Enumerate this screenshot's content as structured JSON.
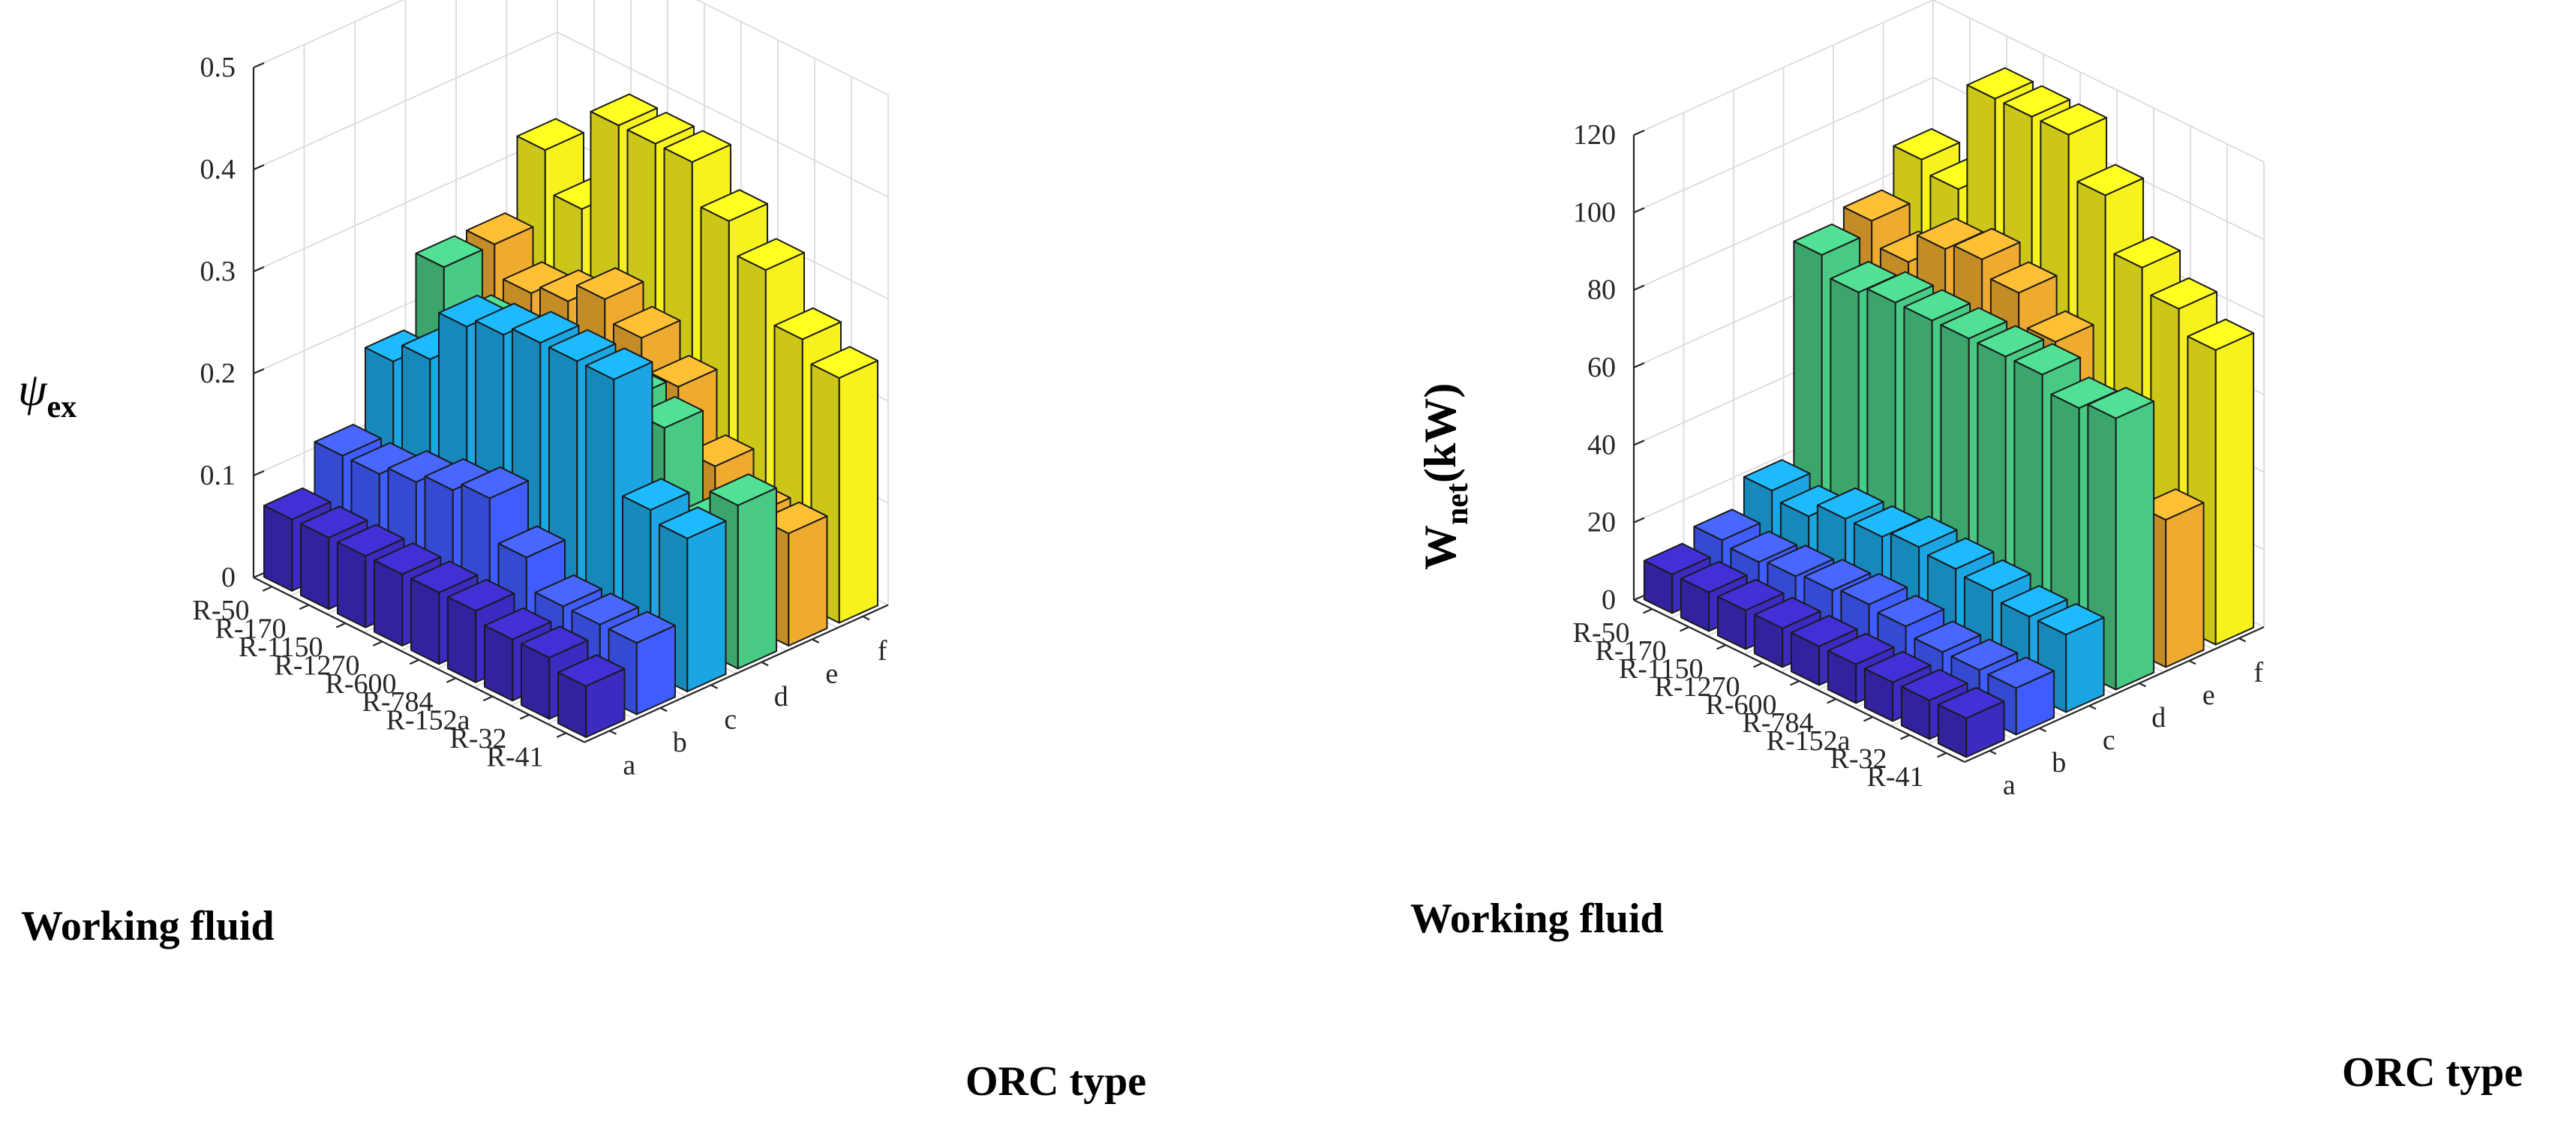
{
  "colors": {
    "a": "#3b2bc0",
    "b": "#3f5cff",
    "c": "#1ba6e3",
    "d": "#48c984",
    "e": "#efab2f",
    "f": "#f7f21d"
  },
  "chart_data": [
    {
      "type": "bar3d",
      "title": "",
      "xlabel": "Working fluid",
      "ylabel": "ORC type",
      "zlabel": "ψ_ex",
      "zlabel_parts": {
        "main": "ψ",
        "sub": "ex"
      },
      "zlim": [
        0,
        0.5
      ],
      "zticks": [
        0,
        0.1,
        0.2,
        0.3,
        0.4,
        0.5
      ],
      "zticklabels": [
        "0",
        "0.1",
        "0.2",
        "0.3",
        "0.4",
        "0.5"
      ],
      "categories": [
        "R-50",
        "R-170",
        "R-1150",
        "R-1270",
        "R-600",
        "R-784",
        "R-152a",
        "R-32",
        "R-41"
      ],
      "series": [
        {
          "name": "a",
          "values": [
            0.07,
            0.07,
            0.07,
            0.07,
            0.07,
            0.07,
            0.06,
            0.06,
            0.05
          ]
        },
        {
          "name": "b",
          "values": [
            0.11,
            0.11,
            0.12,
            0.13,
            0.14,
            0.1,
            0.07,
            0.07,
            0.07
          ]
        },
        {
          "name": "c",
          "values": [
            0.18,
            0.2,
            0.25,
            0.26,
            0.27,
            0.27,
            0.27,
            0.16,
            0.15
          ]
        },
        {
          "name": "d",
          "values": [
            0.25,
            0.21,
            0.21,
            0.21,
            0.21,
            0.21,
            0.2,
            0.12,
            0.16
          ]
        },
        {
          "name": "e",
          "values": [
            0.25,
            0.22,
            0.23,
            0.25,
            0.23,
            0.2,
            0.14,
            0.11,
            0.11
          ]
        },
        {
          "name": "f",
          "values": [
            0.32,
            0.28,
            0.38,
            0.38,
            0.38,
            0.34,
            0.31,
            0.26,
            0.24
          ]
        }
      ]
    },
    {
      "type": "bar3d",
      "title": "",
      "xlabel": "Working fluid",
      "ylabel": "ORC type",
      "zlabel": "W_net(kW)",
      "zlabel_parts": {
        "main": "W",
        "sub": "net",
        "tail": "(kW)"
      },
      "zlim": [
        0,
        120
      ],
      "zticks": [
        0,
        20,
        40,
        60,
        80,
        100,
        120
      ],
      "zticklabels": [
        "0",
        "20",
        "40",
        "60",
        "80",
        "100",
        "120"
      ],
      "categories": [
        "R-50",
        "R-170",
        "R-1150",
        "R-1270",
        "R-600",
        "R-784",
        "R-152a",
        "R-32",
        "R-41"
      ],
      "series": [
        {
          "name": "a",
          "values": [
            10,
            10,
            10,
            10,
            10,
            10,
            10,
            10,
            10
          ]
        },
        {
          "name": "b",
          "values": [
            13,
            12,
            13,
            14,
            15,
            14,
            12,
            12,
            12
          ]
        },
        {
          "name": "c",
          "values": [
            20,
            18,
            22,
            22,
            24,
            23,
            22,
            20,
            20
          ]
        },
        {
          "name": "d",
          "values": [
            75,
            70,
            72,
            72,
            72,
            72,
            72,
            68,
            70
          ]
        },
        {
          "name": "e",
          "values": [
            78,
            72,
            80,
            82,
            78,
            70,
            55,
            33,
            38
          ]
        },
        {
          "name": "f",
          "values": [
            88,
            85,
            113,
            113,
            113,
            102,
            88,
            82,
            76
          ]
        }
      ]
    }
  ]
}
